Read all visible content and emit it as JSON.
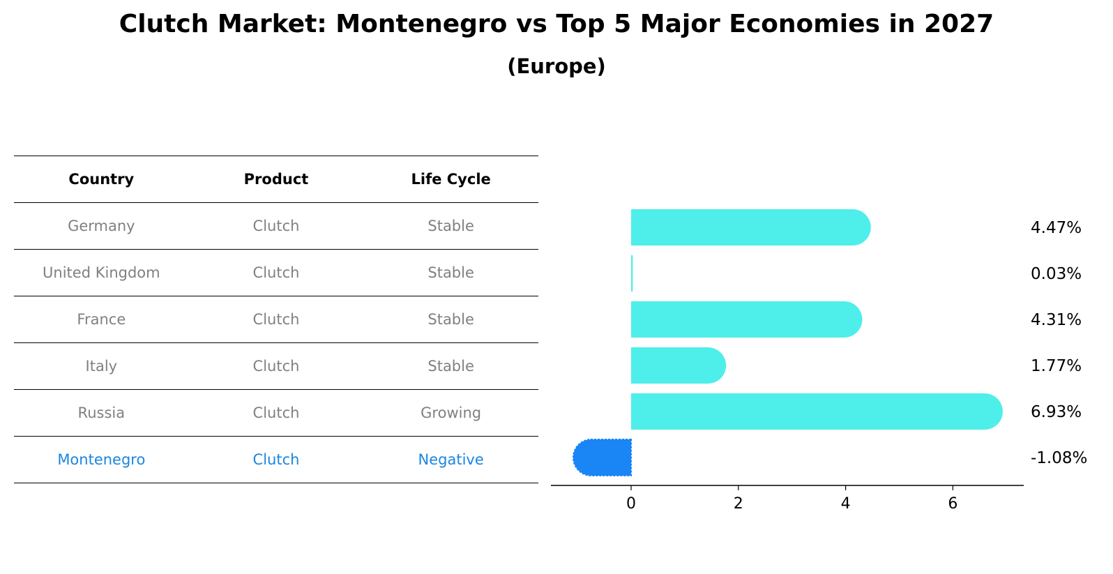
{
  "title": "Clutch Market: Montenegro vs Top 5 Major Economies in 2027",
  "subtitle": "(Europe)",
  "table": {
    "headers": [
      "Country",
      "Product",
      "Life Cycle"
    ],
    "rows": [
      [
        "Germany",
        "Clutch",
        "Stable"
      ],
      [
        "United Kingdom",
        "Clutch",
        "Stable"
      ],
      [
        "France",
        "Clutch",
        "Stable"
      ],
      [
        "Italy",
        "Clutch",
        "Stable"
      ],
      [
        "Russia",
        "Clutch",
        "Growing"
      ],
      [
        "Montenegro",
        "Clutch",
        "Negative"
      ]
    ],
    "highlight_row": 5,
    "highlight_color": "#1a86e0",
    "text_color": "#808080"
  },
  "chart_data": {
    "type": "bar",
    "orientation": "horizontal",
    "categories": [
      "Germany",
      "United Kingdom",
      "France",
      "Italy",
      "Russia",
      "Montenegro"
    ],
    "values": [
      4.47,
      0.03,
      4.31,
      1.77,
      6.93,
      -1.08
    ],
    "value_labels": [
      "4.47%",
      "0.03%",
      "4.31%",
      "1.77%",
      "6.93%",
      "-1.08%"
    ],
    "xticks": [
      0,
      2,
      4,
      6
    ],
    "xlim": [
      -1.5,
      7.3
    ],
    "positive_color": "#4eeeea",
    "negative_color": "#1a86f5"
  }
}
